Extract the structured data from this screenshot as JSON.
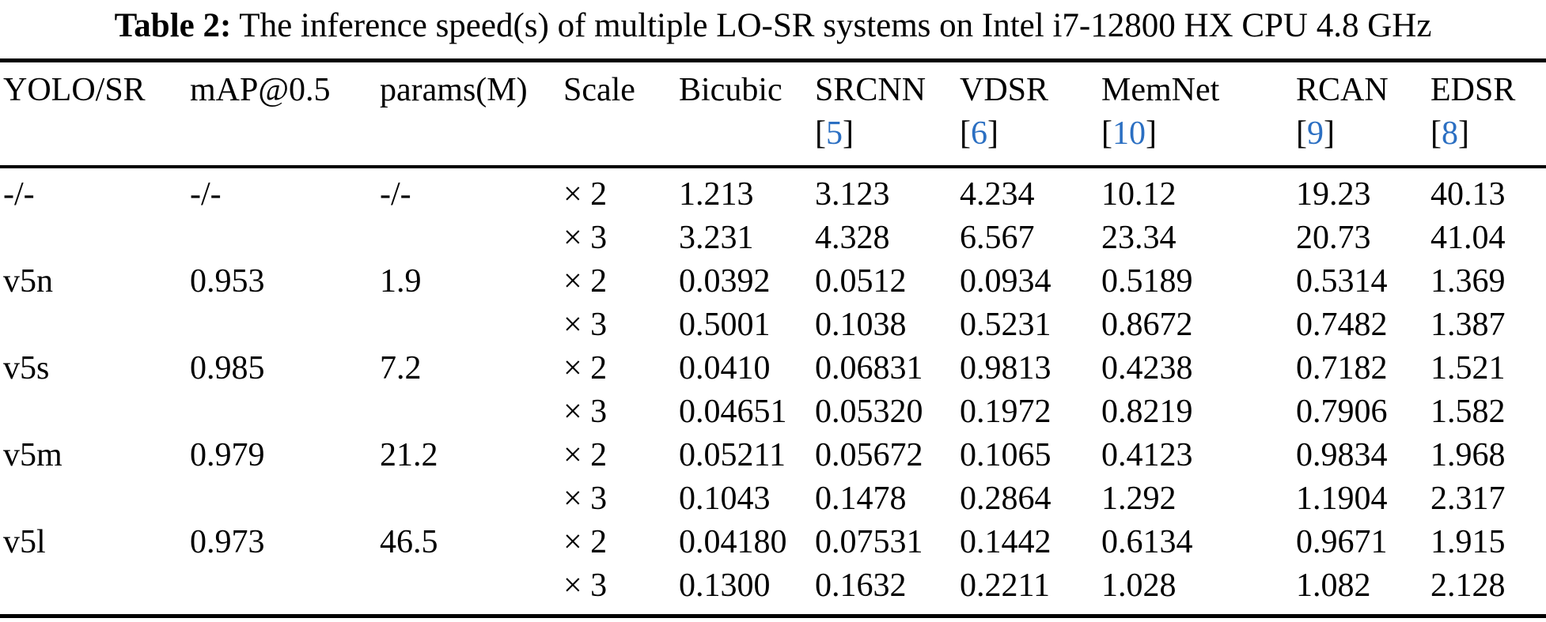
{
  "caption": {
    "label": "Table 2:",
    "text": "The inference speed(s) of multiple LO-SR systems on Intel i7-12800 HX CPU 4.8 GHz"
  },
  "colors": {
    "cite_blue": "#2b6fc2",
    "rule_black": "#000000"
  },
  "chart_data": {
    "type": "table",
    "title": "Table 2: The inference speed(s) of multiple LO-SR systems on Intel i7-12800 HX CPU 4.8 GHz",
    "columns": [
      "YOLO/SR",
      "mAP@0.5",
      "params(M)",
      "Scale",
      "Bicubic",
      "SRCNN [5]",
      "VDSR [6]",
      "MemNet [10]",
      "RCAN [9]",
      "EDSR [8]"
    ],
    "rows": [
      [
        "-/-",
        "-/-",
        "-/-",
        "× 2",
        "1.213",
        "3.123",
        "4.234",
        "10.12",
        "19.23",
        "40.13"
      ],
      [
        "",
        "",
        "",
        "× 3",
        "3.231",
        "4.328",
        "6.567",
        "23.34",
        "20.73",
        "41.04"
      ],
      [
        "v5n",
        "0.953",
        "1.9",
        "× 2",
        "0.0392",
        "0.0512",
        "0.0934",
        "0.5189",
        "0.5314",
        "1.369"
      ],
      [
        "",
        "",
        "",
        "× 3",
        "0.5001",
        "0.1038",
        "0.5231",
        "0.8672",
        "0.7482",
        "1.387"
      ],
      [
        "v5s",
        "0.985",
        "7.2",
        "× 2",
        "0.0410",
        "0.06831",
        "0.9813",
        "0.4238",
        "0.7182",
        "1.521"
      ],
      [
        "",
        "",
        "",
        "× 3",
        "0.04651",
        "0.05320",
        "0.1972",
        "0.8219",
        "0.7906",
        "1.582"
      ],
      [
        "v5m",
        "0.979",
        "21.2",
        "× 2",
        "0.05211",
        "0.05672",
        "0.1065",
        "0.4123",
        "0.9834",
        "1.968"
      ],
      [
        "",
        "",
        "",
        "× 3",
        "0.1043",
        "0.1478",
        "0.2864",
        "1.292",
        "1.1904",
        "2.317"
      ],
      [
        "v5l",
        "0.973",
        "46.5",
        "× 2",
        "0.04180",
        "0.07531",
        "0.1442",
        "0.6134",
        "0.9671",
        "1.915"
      ],
      [
        "",
        "",
        "",
        "× 3",
        "0.1300",
        "0.1632",
        "0.2211",
        "1.028",
        "1.082",
        "2.128"
      ]
    ]
  },
  "table": {
    "columns": [
      {
        "key": "system",
        "label": "YOLO/SR"
      },
      {
        "key": "map",
        "label": "mAP@0.5"
      },
      {
        "key": "params",
        "label": "params(M)"
      },
      {
        "key": "scale",
        "label": "Scale"
      },
      {
        "key": "bicubic",
        "label": "Bicubic"
      },
      {
        "key": "srcnn",
        "label": "SRCNN",
        "cite": "5"
      },
      {
        "key": "vdsr",
        "label": "VDSR",
        "cite": "6"
      },
      {
        "key": "memnet",
        "label": "MemNet",
        "cite": "10"
      },
      {
        "key": "rcan",
        "label": "RCAN",
        "cite": "9"
      },
      {
        "key": "edsr",
        "label": "EDSR",
        "cite": "8"
      }
    ],
    "groups": [
      {
        "system": "-/-",
        "map": "-/-",
        "params": "-/-",
        "rows": [
          {
            "scale": "× 2",
            "values": [
              "1.213",
              "3.123",
              "4.234",
              "10.12",
              "19.23",
              "40.13"
            ]
          },
          {
            "scale": "× 3",
            "values": [
              "3.231",
              "4.328",
              "6.567",
              "23.34",
              "20.73",
              "41.04"
            ]
          }
        ]
      },
      {
        "system": "v5n",
        "map": "0.953",
        "params": "1.9",
        "rows": [
          {
            "scale": "× 2",
            "values": [
              "0.0392",
              "0.0512",
              "0.0934",
              "0.5189",
              "0.5314",
              "1.369"
            ]
          },
          {
            "scale": "× 3",
            "values": [
              "0.5001",
              "0.1038",
              "0.5231",
              "0.8672",
              "0.7482",
              "1.387"
            ]
          }
        ]
      },
      {
        "system": "v5s",
        "map": "0.985",
        "params": "7.2",
        "rows": [
          {
            "scale": "× 2",
            "values": [
              "0.0410",
              "0.06831",
              "0.9813",
              "0.4238",
              "0.7182",
              "1.521"
            ]
          },
          {
            "scale": "× 3",
            "values": [
              "0.04651",
              "0.05320",
              "0.1972",
              "0.8219",
              "0.7906",
              "1.582"
            ]
          }
        ]
      },
      {
        "system": "v5m",
        "map": "0.979",
        "params": "21.2",
        "rows": [
          {
            "scale": "× 2",
            "values": [
              "0.05211",
              "0.05672",
              "0.1065",
              "0.4123",
              "0.9834",
              "1.968"
            ]
          },
          {
            "scale": "× 3",
            "values": [
              "0.1043",
              "0.1478",
              "0.2864",
              "1.292",
              "1.1904",
              "2.317"
            ]
          }
        ]
      },
      {
        "system": "v5l",
        "map": "0.973",
        "params": "46.5",
        "rows": [
          {
            "scale": "× 2",
            "values": [
              "0.04180",
              "0.07531",
              "0.1442",
              "0.6134",
              "0.9671",
              "1.915"
            ]
          },
          {
            "scale": "× 3",
            "values": [
              "0.1300",
              "0.1632",
              "0.2211",
              "1.028",
              "1.082",
              "2.128"
            ]
          }
        ]
      }
    ]
  }
}
